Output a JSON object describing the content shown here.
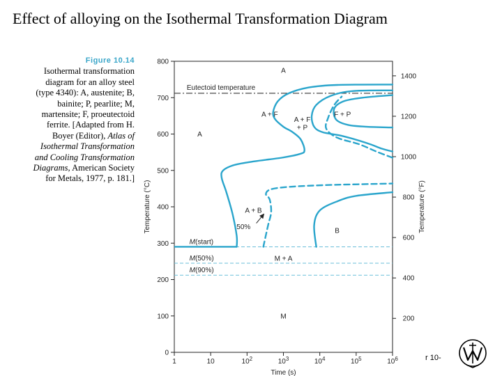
{
  "slide": {
    "title": "Effect of alloying on the Isothermal Transformation Diagram",
    "page_number": "r 10-"
  },
  "caption": {
    "figure_label": "Figure 10.14",
    "text_plain_1": "Isothermal transformation diagram for an alloy steel (type 4340): A, austenite; B, bainite; P, pearlite; M, martensite; F, proeutectoid ferrite. [Adapted from H. Boyer (Editor), ",
    "text_italic": "Atlas of Isothermal Transformation and Cooling Transformation Diagrams,",
    "text_plain_2": " American Society for Metals, 1977, p. 181.]"
  },
  "chart_data": {
    "type": "line",
    "xlabel": "Time (s)",
    "ylabel_left": "Temperature (°C)",
    "ylabel_right": "Temperature (°F)",
    "xscale": "log",
    "x_ticks": [
      {
        "value": 1,
        "label": "1"
      },
      {
        "value": 10,
        "label": "10"
      },
      {
        "value": 100,
        "label": "10",
        "sup": "2"
      },
      {
        "value": 1000,
        "label": "10",
        "sup": "3"
      },
      {
        "value": 10000,
        "label": "10",
        "sup": "4"
      },
      {
        "value": 100000,
        "label": "10",
        "sup": "5"
      },
      {
        "value": 1000000,
        "label": "10",
        "sup": "6"
      }
    ],
    "xlim": [
      1,
      1000000
    ],
    "ylim_c": [
      0,
      800
    ],
    "y_ticks_c": [
      "0",
      "100",
      "200",
      "300",
      "400",
      "500",
      "600",
      "700",
      "800"
    ],
    "y_ticks_f": [
      {
        "value": 200,
        "label": "200"
      },
      {
        "value": 400,
        "label": "400"
      },
      {
        "value": 600,
        "label": "600"
      },
      {
        "value": 800,
        "label": "800"
      },
      {
        "value": 1000,
        "label": "1000"
      },
      {
        "value": 1200,
        "label": "1200"
      },
      {
        "value": 1400,
        "label": "1400"
      }
    ],
    "eutectoid": {
      "label": "Eutectoid temperature",
      "temp_c": 712
    },
    "martensite_lines": [
      {
        "label_italic": "M",
        "label_rest": "(start)",
        "temp_c": 290
      },
      {
        "label_italic": "M",
        "label_rest": "(50%)",
        "temp_c": 245
      },
      {
        "label_italic": "M",
        "label_rest": "(90%)",
        "temp_c": 212
      }
    ],
    "region_labels": [
      {
        "text": "A",
        "x": 1000,
        "y": 775
      },
      {
        "text": "A + F",
        "x": 420,
        "y": 655
      },
      {
        "text": "A + F",
        "x": 3300,
        "y": 640
      },
      {
        "text": "+ P",
        "x": 3300,
        "y": 618
      },
      {
        "text": "F + P",
        "x": 42000,
        "y": 655
      },
      {
        "text": "A",
        "x": 5,
        "y": 600
      },
      {
        "text": "A + B",
        "x": 150,
        "y": 390
      },
      {
        "text": "50%",
        "x": 80,
        "y": 345
      },
      {
        "text": "B",
        "x": 30000,
        "y": 335
      },
      {
        "text": "M + A",
        "x": 1000,
        "y": 258
      },
      {
        "text": "M",
        "x": 1000,
        "y": 100
      }
    ],
    "series": [
      {
        "style": "solid",
        "points": [
          [
            52,
            290
          ],
          [
            52,
            320
          ],
          [
            40,
            380
          ],
          [
            27,
            440
          ],
          [
            20,
            480
          ],
          [
            22,
            500
          ],
          [
            45,
            515
          ],
          [
            160,
            525
          ],
          [
            900,
            535
          ],
          [
            2800,
            545
          ],
          [
            3800,
            555
          ],
          [
            3000,
            585
          ],
          [
            1800,
            605
          ],
          [
            1000,
            620
          ],
          [
            600,
            640
          ],
          [
            520,
            660
          ],
          [
            700,
            690
          ],
          [
            1400,
            712
          ],
          [
            5000,
            728
          ],
          [
            30000,
            735
          ],
          [
            1000000,
            736
          ]
        ]
      },
      {
        "style": "solid",
        "points": [
          [
            1000000,
            720
          ],
          [
            80000,
            718
          ],
          [
            20000,
            705
          ],
          [
            8000,
            680
          ],
          [
            6000,
            650
          ],
          [
            7000,
            620
          ],
          [
            12000,
            605
          ],
          [
            40000,
            595
          ],
          [
            200000,
            575
          ],
          [
            500000,
            560
          ],
          [
            1000000,
            552
          ]
        ]
      },
      {
        "style": "solid",
        "points": [
          [
            1000000,
            707
          ],
          [
            150000,
            700
          ],
          [
            45000,
            690
          ],
          [
            25000,
            670
          ],
          [
            28000,
            640
          ],
          [
            60000,
            625
          ],
          [
            200000,
            620
          ],
          [
            1000000,
            618
          ]
        ]
      },
      {
        "style": "dashed",
        "points": [
          [
            1000000,
            535
          ],
          [
            400000,
            550
          ],
          [
            120000,
            572
          ],
          [
            30000,
            590
          ],
          [
            15000,
            615
          ],
          [
            17000,
            645
          ],
          [
            25000,
            680
          ],
          [
            40000,
            703
          ]
        ]
      },
      {
        "style": "dashed",
        "points": [
          [
            280,
            290
          ],
          [
            380,
            350
          ],
          [
            460,
            385
          ],
          [
            420,
            420
          ],
          [
            330,
            435
          ],
          [
            450,
            448
          ],
          [
            1500,
            455
          ],
          [
            20000,
            460
          ],
          [
            1000000,
            464
          ]
        ]
      },
      {
        "style": "solid",
        "points": [
          [
            1000000,
            440
          ],
          [
            100000,
            430
          ],
          [
            30000,
            415
          ],
          [
            10000,
            390
          ],
          [
            7000,
            350
          ],
          [
            8000,
            290
          ]
        ]
      }
    ],
    "arrow": {
      "from": [
        180,
        355
      ],
      "to": [
        290,
        380
      ]
    }
  },
  "colors": {
    "curve": "#2aa5cc",
    "caption_label": "#3aa6c9",
    "axis": "#222222",
    "eutectoid_line": "#333333",
    "martensite_line": "#6bbfd9"
  },
  "icons": {
    "logo": "wiley-logo"
  }
}
